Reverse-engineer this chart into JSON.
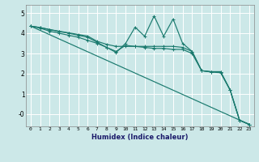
{
  "xlabel": "Humidex (Indice chaleur)",
  "background_color": "#cce8e8",
  "grid_color": "#ffffff",
  "line_color": "#1a7a6e",
  "xlim": [
    -0.5,
    23.5
  ],
  "ylim": [
    -0.6,
    5.4
  ],
  "yticks": [
    0,
    1,
    2,
    3,
    4,
    5
  ],
  "ytick_labels": [
    "-0",
    "1",
    "2",
    "3",
    "4",
    "5"
  ],
  "xticks": [
    0,
    1,
    2,
    3,
    4,
    5,
    6,
    7,
    8,
    9,
    10,
    11,
    12,
    13,
    14,
    15,
    16,
    17,
    18,
    19,
    20,
    21,
    22,
    23
  ],
  "series": [
    {
      "x": [
        0,
        1,
        2,
        3,
        4,
        5,
        6,
        7,
        8,
        9,
        10,
        11,
        12,
        13,
        14,
        15,
        16,
        17,
        18,
        19,
        20,
        21,
        22,
        23
      ],
      "y": [
        4.35,
        4.28,
        4.18,
        4.1,
        4.02,
        3.94,
        3.86,
        3.6,
        3.45,
        3.35,
        3.35,
        3.35,
        3.35,
        3.35,
        3.35,
        3.35,
        3.3,
        3.1,
        2.15,
        2.1,
        2.1,
        1.2,
        -0.3,
        -0.5
      ]
    },
    {
      "x": [
        0,
        1,
        2,
        3,
        4,
        5,
        6,
        7,
        8,
        9,
        10,
        11,
        12,
        13,
        14,
        15,
        16,
        17,
        18,
        19,
        20,
        21,
        22,
        23
      ],
      "y": [
        4.35,
        4.28,
        4.18,
        4.08,
        4.0,
        3.9,
        3.8,
        3.55,
        3.3,
        3.05,
        3.5,
        4.3,
        3.85,
        4.85,
        3.85,
        4.7,
        3.5,
        3.1,
        2.15,
        2.1,
        2.1,
        1.2,
        -0.3,
        -0.5
      ]
    },
    {
      "x": [
        0,
        1,
        2,
        3,
        4,
        5,
        6,
        7,
        8,
        9,
        10,
        11,
        12,
        13,
        14,
        15,
        16,
        17,
        18,
        19,
        20,
        21,
        22,
        23
      ],
      "y": [
        4.35,
        4.25,
        4.1,
        4.0,
        3.9,
        3.8,
        3.65,
        3.5,
        3.3,
        3.1,
        3.4,
        3.35,
        3.3,
        3.25,
        3.25,
        3.2,
        3.2,
        3.0,
        2.15,
        2.08,
        2.05,
        1.2,
        -0.3,
        -0.5
      ]
    },
    {
      "x": [
        0,
        23
      ],
      "y": [
        4.35,
        -0.5
      ]
    }
  ]
}
